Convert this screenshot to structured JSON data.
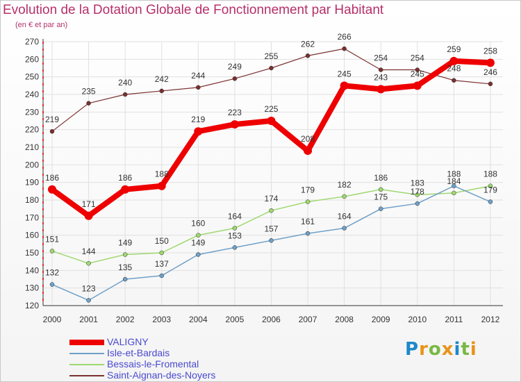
{
  "header": {
    "title": "Evolution de la Dotation Globale de Fonctionnement par Habitant",
    "subtitle": "(en € et par an)"
  },
  "brand": {
    "text": "Proxiti",
    "letter_colors": [
      "#1e88c8",
      "#e8941a",
      "#79b943",
      "#e8941a",
      "#1e88c8",
      "#79b943",
      "#e8941a"
    ]
  },
  "chart_data": {
    "type": "line",
    "x": [
      "2000",
      "2001",
      "2002",
      "2003",
      "2004",
      "2005",
      "2006",
      "2007",
      "2008",
      "2009",
      "2010",
      "2011",
      "2012"
    ],
    "ylim": [
      120,
      270
    ],
    "yticks": [
      120,
      130,
      140,
      150,
      160,
      170,
      180,
      190,
      200,
      210,
      220,
      230,
      240,
      250,
      260,
      270
    ],
    "grid": true,
    "legend_position": "bottom-left",
    "series": [
      {
        "name": "VALIGNY",
        "color": "#ee0000",
        "values": [
          186,
          171,
          186,
          188,
          219,
          223,
          225,
          208,
          245,
          243,
          245,
          259,
          258
        ],
        "labels": [
          "186",
          "171",
          "186",
          "188",
          "219",
          "223",
          "225",
          "208",
          "245",
          "243",
          "245",
          "259",
          "258"
        ]
      },
      {
        "name": "Isle-et-Bardais",
        "color": "#6fa0c8",
        "values": [
          132,
          123,
          135,
          137,
          149,
          153,
          157,
          161,
          164,
          175,
          178,
          188,
          179
        ],
        "labels": [
          "132",
          "123",
          "135",
          "137",
          "149",
          "153",
          "157",
          "161",
          "164",
          "175",
          "178",
          "188",
          "179"
        ]
      },
      {
        "name": "Bessais-le-Fromental",
        "color": "#9fd870",
        "values": [
          151,
          144,
          149,
          150,
          160,
          164,
          174,
          179,
          182,
          186,
          183,
          184,
          188
        ],
        "labels": [
          "151",
          "144",
          "149",
          "150",
          "160",
          "164",
          "174",
          "179",
          "182",
          "186",
          "183",
          "184",
          "188"
        ]
      },
      {
        "name": "Saint-Aignan-des-Noyers",
        "color": "#7a3030",
        "values": [
          219,
          235,
          240,
          242,
          244,
          249,
          255,
          262,
          266,
          254,
          254,
          248,
          246
        ],
        "labels": [
          "219",
          "235",
          "240",
          "242",
          "244",
          "249",
          "255",
          "262",
          "266",
          "254",
          "254",
          "248",
          "246"
        ]
      }
    ]
  }
}
